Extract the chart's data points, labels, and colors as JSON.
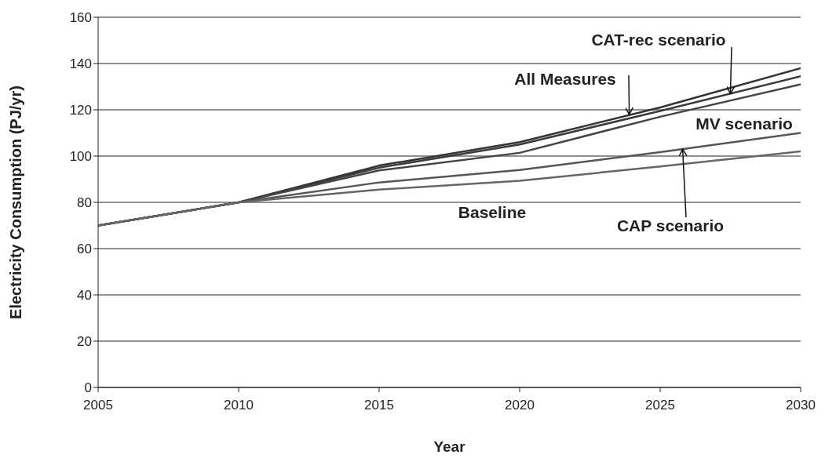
{
  "chart_data": {
    "type": "line",
    "xlabel": "Year",
    "ylabel": "Electricity Consumption (PJ/yr)",
    "x": [
      2005,
      2010,
      2015,
      2020,
      2025,
      2030
    ],
    "series": [
      {
        "color": "#333333",
        "values": [
          70,
          80,
          95.9,
          106,
          121,
          138
        ]
      },
      {
        "color": "#3a3a3a",
        "values": [
          70,
          80,
          95,
          105,
          119.5,
          134.5
        ]
      },
      {
        "color": "#444444",
        "values": [
          70,
          80,
          93.8,
          101.4,
          117,
          131
        ]
      },
      {
        "color": "#555555",
        "values": [
          70,
          80,
          88.6,
          94,
          101.7,
          110
        ]
      },
      {
        "color": "#666666",
        "values": [
          70,
          80,
          85.5,
          89.3,
          95.5,
          102
        ]
      }
    ],
    "xlim": [
      2005,
      2030
    ],
    "xticks": [
      2005,
      2010,
      2015,
      2020,
      2025,
      2030
    ],
    "ylim": [
      0,
      160
    ],
    "yticks": [
      0,
      20,
      40,
      60,
      80,
      100,
      120,
      140,
      160
    ],
    "grid": "y",
    "marker": "none",
    "line_style": "solid",
    "annotations": [
      {
        "text": "CAT-rec scenario",
        "x": 2027.5,
        "y": 127
      },
      {
        "text": "All Measures",
        "x": 2023.9,
        "y": 118
      },
      "MV scenario",
      {
        "text": "CAP scenario",
        "x": 2025.8,
        "y": 103
      },
      "Baseline"
    ]
  }
}
